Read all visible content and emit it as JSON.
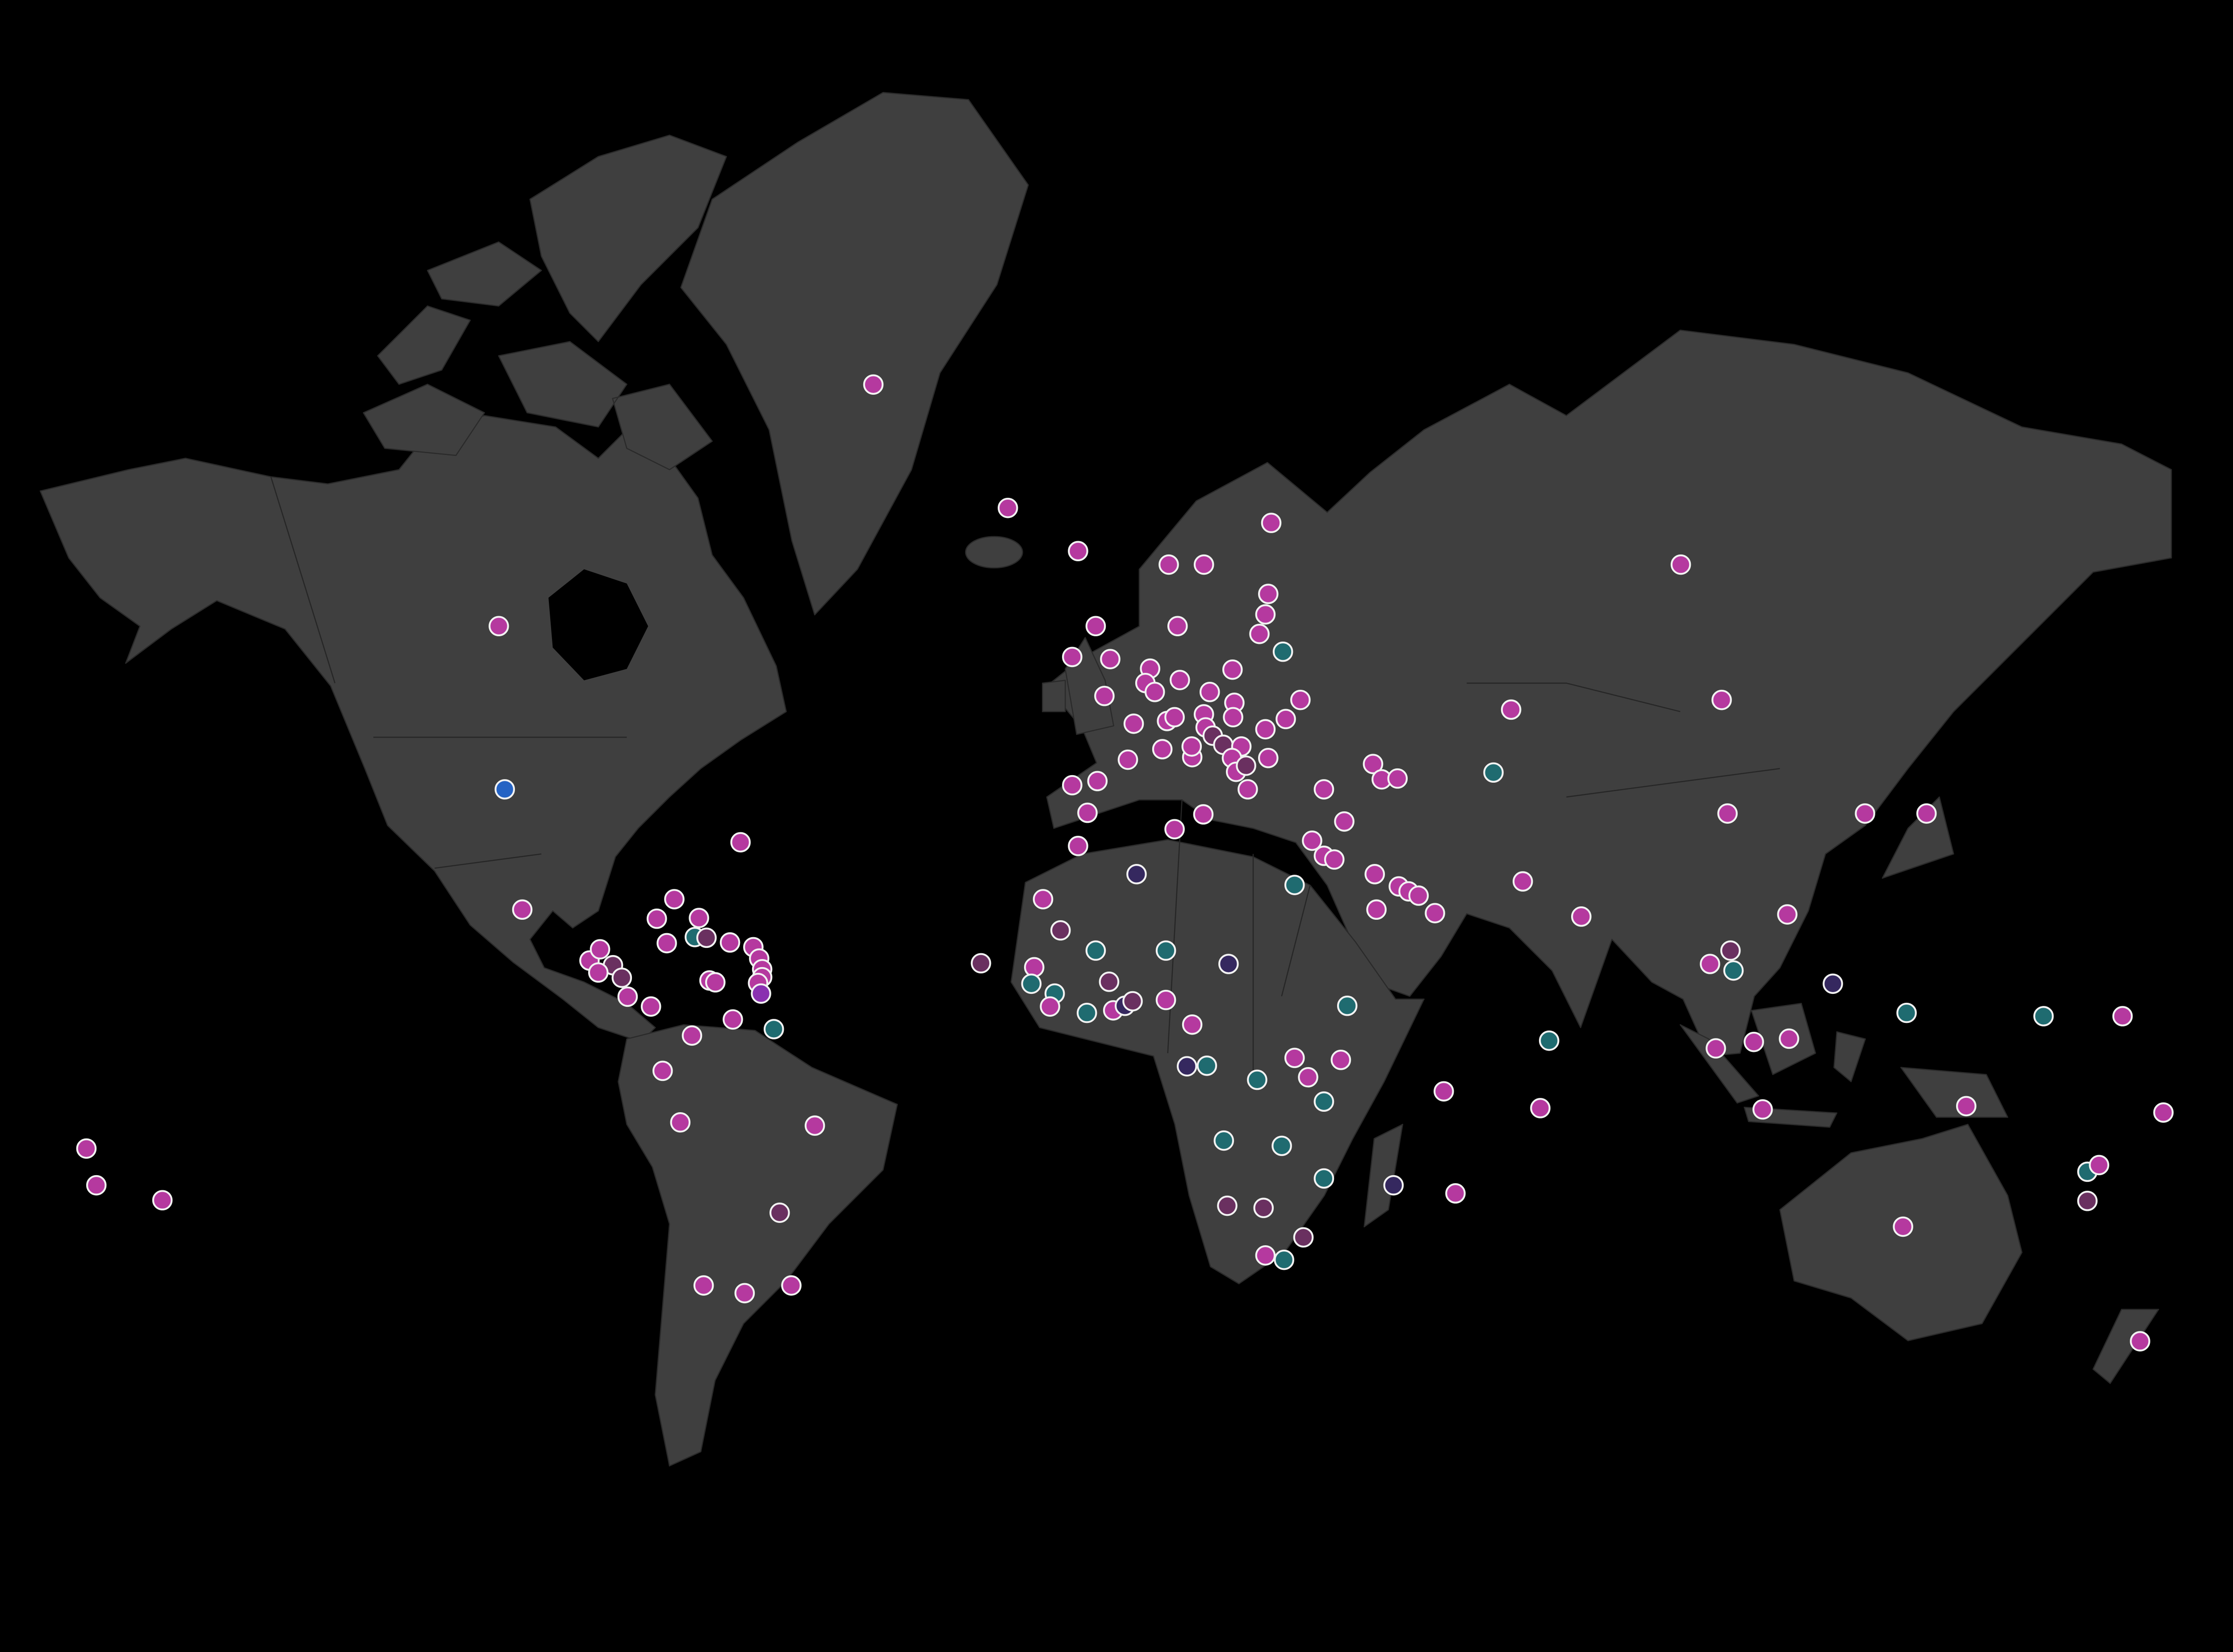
{
  "map": {
    "projection": "mercator",
    "background_color": "#000000",
    "land_color": "#3f3f3f",
    "marker_outline_color": "#f2f2f2",
    "palette": {
      "m": "#b5399f",
      "t": "#1f6b70",
      "p": "#35285f",
      "v": "#6a3060",
      "b": "#2563c4",
      "u": "#8a30b0"
    },
    "points": [
      {
        "lon": -42,
        "lat": 72,
        "c": "m"
      },
      {
        "lon": -19,
        "lat": 65,
        "c": "m"
      },
      {
        "lon": -106,
        "lat": 56,
        "c": "m"
      },
      {
        "lon": -105,
        "lat": 39,
        "c": "b"
      },
      {
        "lon": -102,
        "lat": 23,
        "c": "m"
      },
      {
        "lon": -64.7,
        "lat": 32.3,
        "c": "m"
      },
      {
        "lon": -90.5,
        "lat": 15.5,
        "c": "m"
      },
      {
        "lon": -88.7,
        "lat": 17.2,
        "c": "m"
      },
      {
        "lon": -86.5,
        "lat": 14.8,
        "c": "v"
      },
      {
        "lon": -89,
        "lat": 13.7,
        "c": "m"
      },
      {
        "lon": -85,
        "lat": 12.9,
        "c": "v"
      },
      {
        "lon": -84,
        "lat": 10,
        "c": "m"
      },
      {
        "lon": -80,
        "lat": 8.5,
        "c": "m"
      },
      {
        "lon": -79,
        "lat": 21.7,
        "c": "m"
      },
      {
        "lon": -77.3,
        "lat": 18.1,
        "c": "m"
      },
      {
        "lon": -72.5,
        "lat": 19,
        "c": "t"
      },
      {
        "lon": -70.5,
        "lat": 18.9,
        "c": "v"
      },
      {
        "lon": -76,
        "lat": 24.5,
        "c": "m"
      },
      {
        "lon": -71.8,
        "lat": 21.8,
        "c": "m"
      },
      {
        "lon": -66.5,
        "lat": 18.2,
        "c": "m"
      },
      {
        "lon": -62.5,
        "lat": 17.5,
        "c": "m"
      },
      {
        "lon": -61.5,
        "lat": 15.8,
        "c": "m"
      },
      {
        "lon": -61,
        "lat": 14.2,
        "c": "m"
      },
      {
        "lon": -61,
        "lat": 13,
        "c": "m"
      },
      {
        "lon": -61.7,
        "lat": 12.1,
        "c": "m"
      },
      {
        "lon": -61.2,
        "lat": 10.5,
        "c": "u"
      },
      {
        "lon": -70,
        "lat": 12.5,
        "c": "m"
      },
      {
        "lon": -69,
        "lat": 12.2,
        "c": "m"
      },
      {
        "lon": -73,
        "lat": 4,
        "c": "m"
      },
      {
        "lon": -66,
        "lat": 6.5,
        "c": "m"
      },
      {
        "lon": -59,
        "lat": 5,
        "c": "t"
      },
      {
        "lon": -78,
        "lat": -1.5,
        "c": "m"
      },
      {
        "lon": -75,
        "lat": -9.5,
        "c": "m"
      },
      {
        "lon": -52,
        "lat": -10,
        "c": "m"
      },
      {
        "lon": -58,
        "lat": -23,
        "c": "v"
      },
      {
        "lon": -56,
        "lat": -33,
        "c": "m"
      },
      {
        "lon": -64,
        "lat": -34,
        "c": "m"
      },
      {
        "lon": -71,
        "lat": -33,
        "c": "m"
      },
      {
        "lon": -176.5,
        "lat": -13.5,
        "c": "m"
      },
      {
        "lon": -174.8,
        "lat": -19,
        "c": "m"
      },
      {
        "lon": -163.5,
        "lat": -21.2,
        "c": "m"
      },
      {
        "lon": -23.6,
        "lat": 15.1,
        "c": "v"
      },
      {
        "lon": -7,
        "lat": 31.8,
        "c": "m"
      },
      {
        "lon": -13,
        "lat": 24.5,
        "c": "m"
      },
      {
        "lon": 3,
        "lat": 28,
        "c": "p"
      },
      {
        "lon": 9.5,
        "lat": 34,
        "c": "m"
      },
      {
        "lon": 14.4,
        "lat": 35.9,
        "c": "m"
      },
      {
        "lon": 30,
        "lat": 26.5,
        "c": "t"
      },
      {
        "lon": -10,
        "lat": 20,
        "c": "v"
      },
      {
        "lon": -4,
        "lat": 17,
        "c": "t"
      },
      {
        "lon": 8,
        "lat": 17,
        "c": "t"
      },
      {
        "lon": 18.7,
        "lat": 15,
        "c": "p"
      },
      {
        "lon": -14.5,
        "lat": 14.5,
        "c": "m"
      },
      {
        "lon": -15,
        "lat": 12,
        "c": "t"
      },
      {
        "lon": -11,
        "lat": 10.5,
        "c": "t"
      },
      {
        "lon": -11.8,
        "lat": 8.5,
        "c": "m"
      },
      {
        "lon": -5.5,
        "lat": 7.5,
        "c": "t"
      },
      {
        "lon": -1.7,
        "lat": 12.3,
        "c": "v"
      },
      {
        "lon": -1,
        "lat": 7.9,
        "c": "m"
      },
      {
        "lon": 1,
        "lat": 8.6,
        "c": "p"
      },
      {
        "lon": 2.3,
        "lat": 9.3,
        "c": "v"
      },
      {
        "lon": 8,
        "lat": 9.5,
        "c": "m"
      },
      {
        "lon": 12.5,
        "lat": 5.7,
        "c": "m"
      },
      {
        "lon": 11.6,
        "lat": -0.8,
        "c": "p"
      },
      {
        "lon": 15,
        "lat": -0.7,
        "c": "t"
      },
      {
        "lon": 23.6,
        "lat": -2.9,
        "c": "t"
      },
      {
        "lon": 39,
        "lat": 8.6,
        "c": "t"
      },
      {
        "lon": 32.3,
        "lat": -2.5,
        "c": "m"
      },
      {
        "lon": 35,
        "lat": -6.3,
        "c": "t"
      },
      {
        "lon": 30,
        "lat": 0.5,
        "c": "m"
      },
      {
        "lon": 37.9,
        "lat": 0.2,
        "c": "m"
      },
      {
        "lon": 17.9,
        "lat": -12.3,
        "c": "t"
      },
      {
        "lon": 27.8,
        "lat": -13.1,
        "c": "t"
      },
      {
        "lon": 35,
        "lat": -18,
        "c": "t"
      },
      {
        "lon": 18.5,
        "lat": -22,
        "c": "v"
      },
      {
        "lon": 24.7,
        "lat": -22.3,
        "c": "v"
      },
      {
        "lon": 25,
        "lat": -29,
        "c": "m"
      },
      {
        "lon": 28.2,
        "lat": -29.6,
        "c": "t"
      },
      {
        "lon": 31.5,
        "lat": -26.5,
        "c": "v"
      },
      {
        "lon": 46.9,
        "lat": -19,
        "c": "p"
      },
      {
        "lon": 57.5,
        "lat": -20.2,
        "c": "m"
      },
      {
        "lon": 55.5,
        "lat": -4.7,
        "c": "m"
      },
      {
        "lon": 35,
        "lat": 39,
        "c": "m"
      },
      {
        "lon": 43.4,
        "lat": 42,
        "c": "m"
      },
      {
        "lon": 44.9,
        "lat": 40.2,
        "c": "m"
      },
      {
        "lon": 47.6,
        "lat": 40.3,
        "c": "m"
      },
      {
        "lon": 38.5,
        "lat": 35,
        "c": "m"
      },
      {
        "lon": 33,
        "lat": 32.5,
        "c": "m"
      },
      {
        "lon": 35,
        "lat": 30.5,
        "c": "m"
      },
      {
        "lon": 36.8,
        "lat": 30,
        "c": "m"
      },
      {
        "lon": 43.7,
        "lat": 28,
        "c": "m"
      },
      {
        "lon": 47.8,
        "lat": 26.3,
        "c": "m"
      },
      {
        "lon": 49.5,
        "lat": 25.6,
        "c": "m"
      },
      {
        "lon": 51.2,
        "lat": 25,
        "c": "m"
      },
      {
        "lon": 54,
        "lat": 22.5,
        "c": "m"
      },
      {
        "lon": 44,
        "lat": 23,
        "c": "m"
      },
      {
        "lon": 67,
        "lat": 48,
        "c": "m"
      },
      {
        "lon": 64,
        "lat": 41,
        "c": "t"
      },
      {
        "lon": 69,
        "lat": 27,
        "c": "m"
      },
      {
        "lon": 79,
        "lat": 22,
        "c": "m"
      },
      {
        "lon": 73.5,
        "lat": 3.2,
        "c": "t"
      },
      {
        "lon": 72,
        "lat": -7.3,
        "c": "m"
      },
      {
        "lon": 96,
        "lat": 61,
        "c": "m"
      },
      {
        "lon": 103,
        "lat": 49,
        "c": "m"
      },
      {
        "lon": 104,
        "lat": 36,
        "c": "m"
      },
      {
        "lon": 138,
        "lat": 36,
        "c": "m"
      },
      {
        "lon": 127.5,
        "lat": 36,
        "c": "m"
      },
      {
        "lon": 114.2,
        "lat": 22.3,
        "c": "m"
      },
      {
        "lon": 101,
        "lat": 15,
        "c": "m"
      },
      {
        "lon": 104.5,
        "lat": 17,
        "c": "v"
      },
      {
        "lon": 105,
        "lat": 14,
        "c": "t"
      },
      {
        "lon": 122,
        "lat": 12,
        "c": "p"
      },
      {
        "lon": 102,
        "lat": 2,
        "c": "m"
      },
      {
        "lon": 108.5,
        "lat": 3,
        "c": "m"
      },
      {
        "lon": 114.5,
        "lat": 3.5,
        "c": "m"
      },
      {
        "lon": 110,
        "lat": -7.5,
        "c": "m"
      },
      {
        "lon": 134.6,
        "lat": 7.5,
        "c": "t"
      },
      {
        "lon": 158,
        "lat": 7,
        "c": "t"
      },
      {
        "lon": 171.5,
        "lat": 7,
        "c": "m"
      },
      {
        "lon": 178.5,
        "lat": -8,
        "c": "m"
      },
      {
        "lon": 144.8,
        "lat": -7,
        "c": "m"
      },
      {
        "lon": 165.5,
        "lat": -17,
        "c": "t"
      },
      {
        "lon": 167.5,
        "lat": -16,
        "c": "m"
      },
      {
        "lon": 165.5,
        "lat": -21.3,
        "c": "v"
      },
      {
        "lon": 134,
        "lat": -25,
        "c": "m"
      },
      {
        "lon": 174.5,
        "lat": -40,
        "c": "m"
      },
      {
        "lon": 8.5,
        "lat": 61,
        "c": "m"
      },
      {
        "lon": 14.5,
        "lat": 61,
        "c": "m"
      },
      {
        "lon": 26,
        "lat": 64,
        "c": "m"
      },
      {
        "lon": -7,
        "lat": 62,
        "c": "m"
      },
      {
        "lon": 10,
        "lat": 56,
        "c": "m"
      },
      {
        "lon": 25.5,
        "lat": 58.7,
        "c": "m"
      },
      {
        "lon": 25,
        "lat": 57,
        "c": "m"
      },
      {
        "lon": 24,
        "lat": 55.3,
        "c": "m"
      },
      {
        "lon": 28,
        "lat": 53.7,
        "c": "t"
      },
      {
        "lon": -8,
        "lat": 53.2,
        "c": "m"
      },
      {
        "lon": -4,
        "lat": 56,
        "c": "m"
      },
      {
        "lon": -1.5,
        "lat": 53,
        "c": "m"
      },
      {
        "lon": 5.3,
        "lat": 52.1,
        "c": "m"
      },
      {
        "lon": 4.5,
        "lat": 50.7,
        "c": "m"
      },
      {
        "lon": 6.1,
        "lat": 49.8,
        "c": "m"
      },
      {
        "lon": 10.4,
        "lat": 51,
        "c": "m"
      },
      {
        "lon": 19.4,
        "lat": 52,
        "c": "m"
      },
      {
        "lon": -2.5,
        "lat": 49.4,
        "c": "m"
      },
      {
        "lon": 2.5,
        "lat": 46.5,
        "c": "m"
      },
      {
        "lon": 8.2,
        "lat": 46.8,
        "c": "m"
      },
      {
        "lon": 9.5,
        "lat": 47.2,
        "c": "m"
      },
      {
        "lon": 14.5,
        "lat": 47.5,
        "c": "m"
      },
      {
        "lon": 15.5,
        "lat": 49.8,
        "c": "m"
      },
      {
        "lon": 19.7,
        "lat": 48.7,
        "c": "m"
      },
      {
        "lon": 19.5,
        "lat": 47.2,
        "c": "m"
      },
      {
        "lon": 31,
        "lat": 49,
        "c": "m"
      },
      {
        "lon": 28.5,
        "lat": 47,
        "c": "m"
      },
      {
        "lon": 25,
        "lat": 45.9,
        "c": "m"
      },
      {
        "lon": 14.8,
        "lat": 46.1,
        "c": "m"
      },
      {
        "lon": 16,
        "lat": 45.2,
        "c": "v"
      },
      {
        "lon": 17.8,
        "lat": 44.2,
        "c": "v"
      },
      {
        "lon": 20.9,
        "lat": 44,
        "c": "m"
      },
      {
        "lon": 19.3,
        "lat": 42.7,
        "c": "m"
      },
      {
        "lon": 20,
        "lat": 41.1,
        "c": "m"
      },
      {
        "lon": 21.7,
        "lat": 41.8,
        "c": "v"
      },
      {
        "lon": 25.5,
        "lat": 42.7,
        "c": "m"
      },
      {
        "lon": 22,
        "lat": 39,
        "c": "m"
      },
      {
        "lon": 12.5,
        "lat": 42.8,
        "c": "m"
      },
      {
        "lon": 12.4,
        "lat": 44,
        "c": "m"
      },
      {
        "lon": 7.4,
        "lat": 43.7,
        "c": "m"
      },
      {
        "lon": 1.5,
        "lat": 42.5,
        "c": "m"
      },
      {
        "lon": -3.7,
        "lat": 40,
        "c": "m"
      },
      {
        "lon": -8,
        "lat": 39.5,
        "c": "m"
      },
      {
        "lon": -5.4,
        "lat": 36.1,
        "c": "m"
      }
    ]
  }
}
